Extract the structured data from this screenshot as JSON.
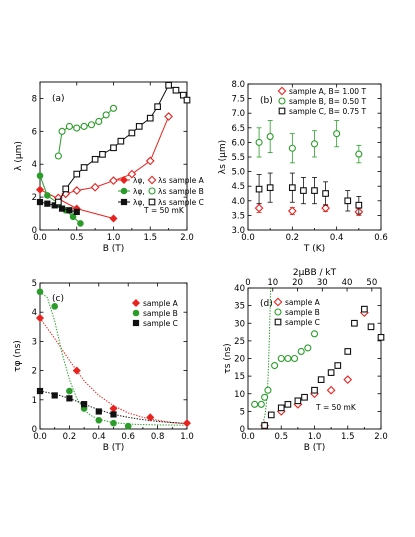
{
  "colors": {
    "A": "#e8231f",
    "B": "#2a9c2a",
    "C": "#111111"
  },
  "chart_data": [
    {
      "panel": "(a)",
      "type": "line",
      "xlabel": "B (T)",
      "ylabel": "λ (μm)",
      "xlim": [
        0,
        2
      ],
      "ylim": [
        0,
        9
      ],
      "xticks": [
        "0.0",
        "0.5",
        "1.0",
        "1.5",
        "2.0"
      ],
      "yticks": [
        "0",
        "2",
        "4",
        "6",
        "8"
      ],
      "annotation": "T = 50 mK",
      "legend": {
        "lphi": [
          "λφ,",
          "λφ,",
          "λφ,"
        ],
        "ls": [
          "λs",
          "λs",
          "λs"
        ],
        "samples": [
          "sample A",
          "sample B",
          "sample C"
        ]
      },
      "series": [
        {
          "sample": "A",
          "kind": "phi",
          "x": [
            0.0,
            0.25,
            0.5,
            1.0
          ],
          "y": [
            2.45,
            1.9,
            1.3,
            0.7
          ]
        },
        {
          "sample": "A",
          "kind": "s",
          "x": [
            0.25,
            0.35,
            0.5,
            0.75,
            1.0,
            1.25,
            1.5,
            1.75
          ],
          "y": [
            1.95,
            2.2,
            2.4,
            2.6,
            3.0,
            3.4,
            4.2,
            6.9
          ]
        },
        {
          "sample": "B",
          "kind": "phi",
          "x": [
            0.0,
            0.1,
            0.25,
            0.35,
            0.45,
            0.55
          ],
          "y": [
            3.3,
            2.1,
            1.6,
            1.2,
            0.8,
            0.4
          ]
        },
        {
          "sample": "B",
          "kind": "s",
          "x": [
            0.25,
            0.3,
            0.4,
            0.5,
            0.6,
            0.7,
            0.8,
            0.9,
            1.0
          ],
          "y": [
            4.5,
            6.0,
            6.3,
            6.2,
            6.3,
            6.4,
            6.6,
            7.0,
            7.4
          ]
        },
        {
          "sample": "C",
          "kind": "phi",
          "x": [
            0.0,
            0.1,
            0.2,
            0.3,
            0.4,
            0.5
          ],
          "y": [
            1.7,
            1.6,
            1.5,
            1.3,
            1.2,
            1.1
          ]
        },
        {
          "sample": "C",
          "kind": "s",
          "x": [
            0.25,
            0.35,
            0.5,
            0.6,
            0.75,
            0.85,
            1.0,
            1.1,
            1.25,
            1.35,
            1.5,
            1.6,
            1.75,
            1.85,
            1.95,
            2.0
          ],
          "y": [
            1.7,
            2.5,
            3.4,
            3.8,
            4.3,
            4.6,
            5.0,
            5.4,
            5.9,
            6.3,
            6.8,
            7.5,
            8.8,
            8.5,
            8.2,
            7.9
          ]
        }
      ]
    },
    {
      "panel": "(b)",
      "type": "scatter",
      "xlabel": "T (K)",
      "ylabel": "λs (μm)",
      "xlim": [
        0,
        0.6
      ],
      "ylim": [
        3.0,
        8.0
      ],
      "xticks": [
        "0.0",
        "0.2",
        "0.4",
        "0.6"
      ],
      "yticks": [
        "3.0",
        "3.5",
        "4.0",
        "4.5",
        "5.0",
        "5.5",
        "6.0",
        "6.5",
        "7.0",
        "7.5",
        "8.0"
      ],
      "legend": [
        "sample A, B= 1.00 T",
        "sample B, B= 0.50 T",
        "sample C, B= 0.75 T"
      ],
      "series": [
        {
          "sample": "A",
          "x": [
            0.05,
            0.2,
            0.35,
            0.5
          ],
          "y": [
            3.75,
            3.65,
            3.75,
            3.62
          ],
          "err": [
            0.15,
            0.12,
            0.12,
            0.12
          ]
        },
        {
          "sample": "B",
          "x": [
            0.05,
            0.1,
            0.2,
            0.3,
            0.4,
            0.5
          ],
          "y": [
            6.0,
            6.2,
            5.8,
            5.95,
            6.3,
            5.6
          ],
          "err": [
            0.5,
            0.55,
            0.5,
            0.45,
            0.45,
            0.3
          ]
        },
        {
          "sample": "C",
          "x": [
            0.05,
            0.1,
            0.2,
            0.25,
            0.3,
            0.35,
            0.45,
            0.5
          ],
          "y": [
            4.4,
            4.45,
            4.45,
            4.35,
            4.35,
            4.25,
            4.0,
            3.85
          ],
          "err": [
            0.5,
            0.5,
            0.5,
            0.45,
            0.45,
            0.4,
            0.35,
            0.3
          ]
        }
      ]
    },
    {
      "panel": "(c)",
      "type": "scatter",
      "xlabel": "B (T)",
      "ylabel": "τφ (ns)",
      "xlim": [
        0,
        1
      ],
      "ylim": [
        0,
        5
      ],
      "xticks": [
        "0.0",
        "0.2",
        "0.4",
        "0.6",
        "0.8",
        "1.0"
      ],
      "yticks": [
        "0",
        "1",
        "2",
        "3",
        "4",
        "5"
      ],
      "legend": [
        "sample A",
        "sample B",
        "sample C"
      ],
      "series": [
        {
          "sample": "A",
          "x": [
            0.0,
            0.25,
            0.5,
            0.75,
            1.0
          ],
          "y": [
            3.8,
            2.0,
            0.7,
            0.4,
            0.2
          ]
        },
        {
          "sample": "B",
          "x": [
            0.0,
            0.1,
            0.2,
            0.3,
            0.4,
            0.5,
            0.6
          ],
          "y": [
            4.7,
            4.2,
            1.3,
            0.7,
            0.3,
            0.2,
            0.1
          ]
        },
        {
          "sample": "C",
          "x": [
            0.0,
            0.1,
            0.2,
            0.3,
            0.4,
            0.5
          ],
          "y": [
            1.3,
            1.15,
            1.05,
            0.85,
            0.6,
            0.5
          ]
        }
      ],
      "fits": [
        {
          "sample": "A",
          "x": [
            0,
            0.1,
            0.2,
            0.3,
            0.4,
            0.5,
            0.6,
            0.7,
            0.8,
            0.9,
            1.0
          ],
          "y": [
            3.8,
            3.1,
            2.35,
            1.65,
            1.15,
            0.8,
            0.55,
            0.4,
            0.3,
            0.22,
            0.18
          ]
        },
        {
          "sample": "B",
          "x": [
            0,
            0.05,
            0.1,
            0.15,
            0.2,
            0.25,
            0.3,
            0.35,
            0.4,
            0.5,
            0.6,
            0.7,
            0.8,
            1.0
          ],
          "y": [
            4.7,
            4.5,
            3.7,
            2.6,
            1.7,
            1.05,
            0.65,
            0.45,
            0.33,
            0.22,
            0.17,
            0.15,
            0.14,
            0.13
          ]
        },
        {
          "sample": "C",
          "x": [
            0,
            0.1,
            0.2,
            0.3,
            0.4,
            0.5,
            0.6,
            0.7,
            0.8,
            0.9,
            1.0
          ],
          "y": [
            1.3,
            1.2,
            1.05,
            0.85,
            0.66,
            0.5,
            0.4,
            0.32,
            0.26,
            0.22,
            0.19
          ]
        }
      ]
    },
    {
      "panel": "(d)",
      "type": "scatter",
      "xlabel": "B (T)",
      "ylabel": "τs (ns)",
      "x2label": "2μBB / kT",
      "xlim": [
        0,
        2
      ],
      "ylim": [
        0,
        40
      ],
      "x2lim": [
        0,
        53.7
      ],
      "xticks": [
        "0.0",
        "0.5",
        "1.0",
        "1.5",
        "2.0"
      ],
      "yticks": [
        "0",
        "5",
        "10",
        "15",
        "20",
        "25",
        "30",
        "35",
        "40"
      ],
      "x2ticks": [
        "0",
        "10",
        "20",
        "30",
        "40",
        "50"
      ],
      "annotation": "T = 50 mK",
      "legend": [
        "sample A",
        "sample B",
        "sample C"
      ],
      "series": [
        {
          "sample": "A",
          "x": [
            0.25,
            0.5,
            0.75,
            1.0,
            1.25,
            1.5,
            1.75
          ],
          "y": [
            1.0,
            5.0,
            7.0,
            10.0,
            11.0,
            14.0,
            33.0
          ]
        },
        {
          "sample": "B",
          "x": [
            0.1,
            0.2,
            0.25,
            0.3,
            0.4,
            0.5,
            0.6,
            0.7,
            0.8,
            0.9,
            1.0
          ],
          "y": [
            7.0,
            7.0,
            9.0,
            11.0,
            18.0,
            20.0,
            20.0,
            20.0,
            22.0,
            23.0,
            27.0
          ]
        },
        {
          "sample": "C",
          "x": [
            0.25,
            0.35,
            0.5,
            0.6,
            0.75,
            0.85,
            1.0,
            1.1,
            1.25,
            1.35,
            1.5,
            1.6,
            1.75,
            1.85,
            2.0
          ],
          "y": [
            1.0,
            4.0,
            6.0,
            7.0,
            8.0,
            9.0,
            11.0,
            14.0,
            16.0,
            18.0,
            22.0,
            30.0,
            34.0,
            29.0,
            26.0
          ]
        }
      ],
      "fits": [
        {
          "sample": "B",
          "x": [
            0.2,
            0.23,
            0.26,
            0.28,
            0.3,
            0.31,
            0.32,
            0.33,
            0.34
          ],
          "y": [
            1.0,
            2.0,
            4.5,
            8.0,
            14.0,
            19.0,
            25.0,
            32.0,
            40.0
          ]
        }
      ]
    }
  ]
}
